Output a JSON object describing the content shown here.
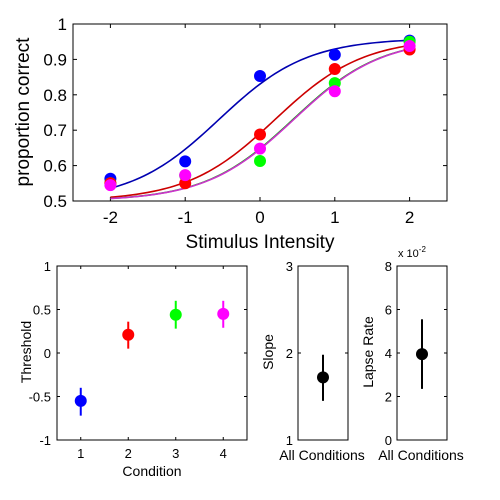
{
  "colors": {
    "blue": "#0000ff",
    "curve_blue": "#0000b0",
    "red": "#ff0000",
    "curve_red": "#cc0000",
    "green": "#00ff00",
    "magenta": "#ff00ff",
    "curve_magenta": "#cc33cc",
    "black": "#000000"
  },
  "chart_data": [
    {
      "id": "psychometric",
      "type": "scatter",
      "xlabel": "Stimulus Intensity",
      "ylabel": "proportion correct",
      "xlim": [
        -2.5,
        2.5
      ],
      "ylim": [
        0.5,
        1.0
      ],
      "xticks": [
        "-2",
        "-1",
        "0",
        "1",
        "2"
      ],
      "yticks": [
        "0.5",
        "0.6",
        "0.7",
        "0.8",
        "0.9",
        "1"
      ],
      "x": [
        -2,
        -1,
        0,
        1,
        2
      ],
      "series": [
        {
          "color": "#0000ff",
          "curve_color": "#0000b0",
          "values": [
            0.563,
            0.612,
            0.853,
            0.913,
            0.953
          ],
          "threshold": -0.55,
          "slope": 1.7,
          "lapse": 0.04
        },
        {
          "color": "#ff0000",
          "curve_color": "#cc0000",
          "values": [
            0.55,
            0.55,
            0.688,
            0.873,
            0.928
          ],
          "threshold": 0.2,
          "slope": 1.7,
          "lapse": 0.04
        },
        {
          "color": "#00ff00",
          "curve_color": "#00aa00",
          "values": [
            0.55,
            0.572,
            0.613,
            0.833,
            0.95
          ],
          "threshold": 0.44,
          "slope": 1.7,
          "lapse": 0.04
        },
        {
          "color": "#ff00ff",
          "curve_color": "#cc33cc",
          "values": [
            0.545,
            0.573,
            0.648,
            0.81,
            0.938
          ],
          "threshold": 0.45,
          "slope": 1.7,
          "lapse": 0.04
        }
      ]
    },
    {
      "id": "threshold",
      "type": "scatter",
      "xlabel": "Condition",
      "ylabel": "Threshold",
      "xlim": [
        0.5,
        4.5
      ],
      "ylim": [
        -1,
        1
      ],
      "xticks": [
        "1",
        "2",
        "3",
        "4"
      ],
      "yticks": [
        "-1",
        "-0.5",
        "0",
        "0.5",
        "1"
      ],
      "points": [
        {
          "x": 1,
          "y": -0.55,
          "low": -0.72,
          "high": -0.4,
          "color": "#0000ff"
        },
        {
          "x": 2,
          "y": 0.21,
          "low": 0.05,
          "high": 0.36,
          "color": "#ff0000"
        },
        {
          "x": 3,
          "y": 0.44,
          "low": 0.28,
          "high": 0.6,
          "color": "#00ff00"
        },
        {
          "x": 4,
          "y": 0.45,
          "low": 0.29,
          "high": 0.6,
          "color": "#ff00ff"
        }
      ]
    },
    {
      "id": "slope",
      "type": "scatter",
      "xlabel": "All Conditions",
      "ylabel": "Slope",
      "ylim": [
        1,
        3
      ],
      "yticks": [
        "1",
        "2",
        "3"
      ],
      "points": [
        {
          "y": 1.72,
          "low": 1.45,
          "high": 1.98,
          "color": "#000000"
        }
      ]
    },
    {
      "id": "lapse",
      "type": "scatter",
      "xlabel": "All Conditions",
      "ylabel": "Lapse Rate",
      "ylim": [
        0,
        8
      ],
      "yticks": [
        "0",
        "2",
        "4",
        "6",
        "8"
      ],
      "multiplier_base": "x 10",
      "multiplier_exp": "-2",
      "points": [
        {
          "y": 3.95,
          "low": 2.35,
          "high": 5.55,
          "color": "#000000"
        }
      ]
    }
  ]
}
